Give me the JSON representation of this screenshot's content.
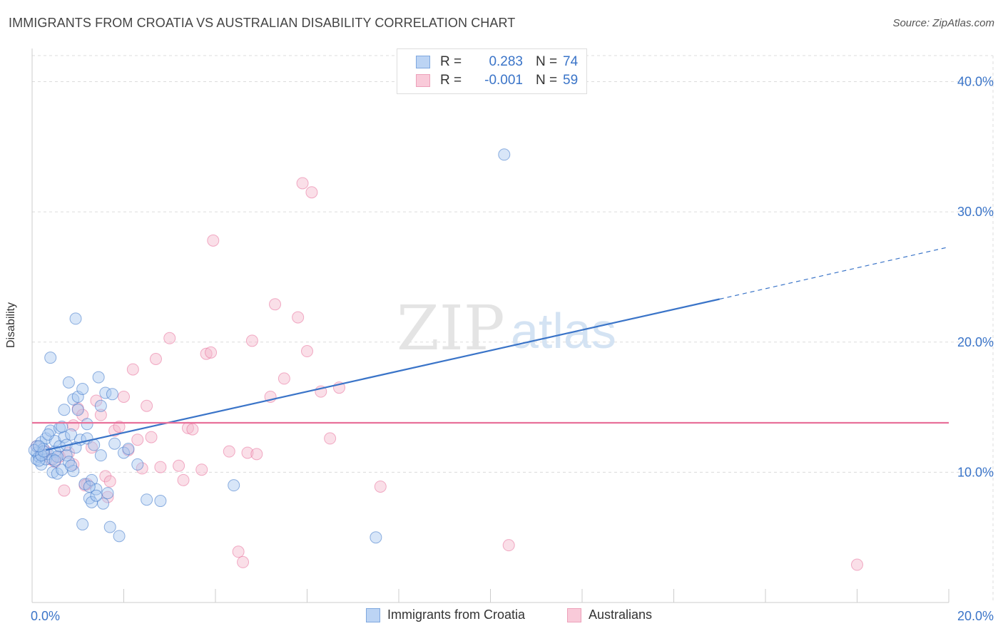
{
  "title": "IMMIGRANTS FROM CROATIA VS AUSTRALIAN DISABILITY CORRELATION CHART",
  "source": "Source: ZipAtlas.com",
  "watermark": {
    "zip": "ZIP",
    "atlas": "atlas"
  },
  "legend": {
    "r_label": "R =",
    "n_label": "N =",
    "series": [
      {
        "r": "0.283",
        "n": "74"
      },
      {
        "r": "-0.001",
        "n": "59"
      }
    ]
  },
  "bottom_legend": [
    "Immigrants from Croatia",
    "Australians"
  ],
  "colors": {
    "blue": "#3a74c8",
    "blue_fill": "#a9c8f0",
    "pink": "#e8709a",
    "pink_fill": "#f5b8cc",
    "grid": "#dddddd"
  },
  "chart_data": {
    "type": "scatter",
    "title": "IMMIGRANTS FROM CROATIA VS AUSTRALIAN DISABILITY CORRELATION CHART",
    "xlabel": "",
    "ylabel": "Disability",
    "xlim": [
      0,
      20
    ],
    "ylim": [
      0,
      42
    ],
    "x_tick_labels": [
      "0.0%",
      "20.0%"
    ],
    "y_ticks": [
      10,
      20,
      30,
      40
    ],
    "y_tick_labels": [
      "10.0%",
      "20.0%",
      "30.0%",
      "40.0%"
    ],
    "series": [
      {
        "name": "Immigrants from Croatia",
        "color": "#3a74c8",
        "trend": {
          "x1": 0.3,
          "y1": 11.7,
          "x2": 15.0,
          "y2": 23.3,
          "dash_to_x": 20.0,
          "dash_to_y": 27.3
        },
        "points": [
          [
            0.1,
            11.5
          ],
          [
            0.1,
            12.0
          ],
          [
            0.1,
            11.0
          ],
          [
            0.15,
            11.2
          ],
          [
            0.2,
            12.3
          ],
          [
            0.2,
            10.6
          ],
          [
            0.25,
            11.8
          ],
          [
            0.3,
            11.0
          ],
          [
            0.3,
            12.6
          ],
          [
            0.35,
            11.4
          ],
          [
            0.4,
            13.2
          ],
          [
            0.4,
            18.8
          ],
          [
            0.45,
            10.0
          ],
          [
            0.5,
            11.6
          ],
          [
            0.5,
            12.4
          ],
          [
            0.55,
            9.9
          ],
          [
            0.6,
            13.4
          ],
          [
            0.6,
            12.0
          ],
          [
            0.65,
            10.2
          ],
          [
            0.7,
            12.7
          ],
          [
            0.7,
            14.8
          ],
          [
            0.75,
            11.3
          ],
          [
            0.8,
            16.9
          ],
          [
            0.8,
            10.8
          ],
          [
            0.85,
            12.9
          ],
          [
            0.9,
            15.6
          ],
          [
            0.9,
            10.1
          ],
          [
            0.95,
            21.8
          ],
          [
            1.0,
            14.8
          ],
          [
            1.0,
            15.8
          ],
          [
            1.05,
            12.5
          ],
          [
            1.1,
            16.4
          ],
          [
            1.1,
            6.0
          ],
          [
            1.15,
            9.1
          ],
          [
            1.2,
            12.6
          ],
          [
            1.2,
            13.7
          ],
          [
            1.25,
            8.0
          ],
          [
            1.3,
            9.4
          ],
          [
            1.35,
            12.1
          ],
          [
            1.4,
            8.7
          ],
          [
            1.45,
            17.3
          ],
          [
            1.5,
            15.1
          ],
          [
            1.5,
            11.3
          ],
          [
            1.55,
            7.6
          ],
          [
            1.6,
            16.1
          ],
          [
            1.7,
            5.8
          ],
          [
            1.75,
            16.0
          ],
          [
            1.8,
            12.2
          ],
          [
            1.9,
            5.1
          ],
          [
            2.0,
            11.5
          ],
          [
            2.3,
            10.6
          ],
          [
            2.5,
            7.9
          ],
          [
            2.8,
            7.8
          ],
          [
            4.4,
            9.0
          ],
          [
            7.5,
            5.0
          ],
          [
            10.3,
            34.4
          ],
          [
            0.05,
            11.7
          ],
          [
            0.15,
            10.9
          ],
          [
            0.2,
            11.3
          ],
          [
            0.35,
            12.9
          ],
          [
            0.45,
            11.0
          ],
          [
            0.55,
            11.2
          ],
          [
            0.65,
            13.5
          ],
          [
            0.75,
            12.1
          ],
          [
            0.85,
            10.5
          ],
          [
            1.3,
            7.7
          ],
          [
            1.4,
            8.2
          ],
          [
            1.65,
            8.4
          ],
          [
            2.1,
            11.8
          ],
          [
            0.25,
            11.6
          ],
          [
            0.5,
            10.9
          ],
          [
            0.95,
            11.9
          ],
          [
            1.25,
            8.9
          ],
          [
            0.15,
            12.0
          ]
        ]
      },
      {
        "name": "Australians",
        "color": "#e8709a",
        "trend": {
          "x1": 0.0,
          "y1": 13.8,
          "x2": 20.0,
          "y2": 13.8
        },
        "points": [
          [
            0.1,
            12.0
          ],
          [
            0.2,
            11.4
          ],
          [
            0.3,
            11.6
          ],
          [
            0.5,
            10.8
          ],
          [
            0.6,
            11.2
          ],
          [
            0.7,
            8.6
          ],
          [
            0.8,
            11.5
          ],
          [
            0.9,
            13.6
          ],
          [
            1.0,
            14.9
          ],
          [
            1.1,
            14.4
          ],
          [
            1.2,
            9.1
          ],
          [
            1.3,
            11.9
          ],
          [
            1.4,
            15.5
          ],
          [
            1.5,
            14.4
          ],
          [
            1.6,
            9.7
          ],
          [
            1.7,
            9.3
          ],
          [
            1.8,
            13.2
          ],
          [
            1.9,
            13.5
          ],
          [
            2.0,
            15.8
          ],
          [
            2.1,
            11.7
          ],
          [
            2.2,
            17.9
          ],
          [
            2.3,
            12.5
          ],
          [
            2.5,
            15.1
          ],
          [
            2.6,
            12.7
          ],
          [
            2.7,
            18.7
          ],
          [
            2.8,
            10.4
          ],
          [
            3.0,
            20.3
          ],
          [
            3.2,
            10.5
          ],
          [
            3.3,
            9.4
          ],
          [
            3.4,
            13.4
          ],
          [
            3.5,
            13.3
          ],
          [
            3.7,
            10.2
          ],
          [
            3.8,
            19.1
          ],
          [
            3.9,
            19.2
          ],
          [
            3.95,
            27.8
          ],
          [
            4.3,
            11.6
          ],
          [
            4.5,
            3.9
          ],
          [
            4.6,
            3.1
          ],
          [
            4.7,
            11.5
          ],
          [
            4.8,
            20.1
          ],
          [
            4.9,
            11.4
          ],
          [
            5.2,
            15.8
          ],
          [
            5.3,
            22.9
          ],
          [
            5.5,
            17.2
          ],
          [
            5.8,
            21.9
          ],
          [
            5.9,
            32.2
          ],
          [
            6.0,
            19.3
          ],
          [
            6.1,
            31.5
          ],
          [
            6.3,
            16.2
          ],
          [
            6.5,
            12.6
          ],
          [
            6.7,
            16.5
          ],
          [
            7.6,
            8.9
          ],
          [
            10.4,
            4.4
          ],
          [
            18.0,
            2.9
          ],
          [
            0.4,
            11.0
          ],
          [
            0.9,
            10.6
          ],
          [
            1.15,
            9.0
          ],
          [
            1.65,
            8.1
          ],
          [
            2.4,
            10.3
          ]
        ]
      }
    ]
  }
}
